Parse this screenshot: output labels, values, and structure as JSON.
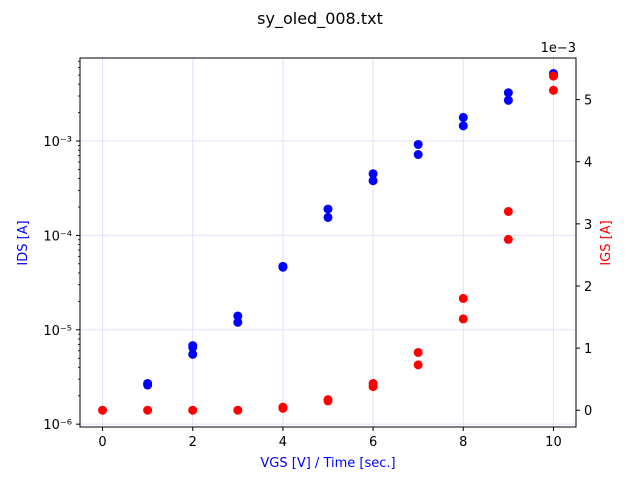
{
  "chart_data": {
    "type": "scatter",
    "title": "sy_oled_008.txt",
    "xlabel": "VGS [V] / Time [sec.]",
    "ylabel_left": "IDS [A]",
    "ylabel_right": "IGS [A]",
    "right_axis_offset_text": "1e−3",
    "x_ticks": [
      "0",
      "2",
      "4",
      "6",
      "8",
      "10"
    ],
    "left_ticks": [
      "10⁻⁶",
      "10⁻⁵",
      "10⁻⁴",
      "10⁻³"
    ],
    "right_ticks": [
      "0",
      "1",
      "2",
      "3",
      "4",
      "5"
    ],
    "xlim": [
      -0.5,
      10.5
    ],
    "ylim_left_log10": [
      -6.03,
      -2.12
    ],
    "ylim_right": [
      -0.27,
      5.67
    ],
    "left_scale": "log",
    "right_scale": "linear",
    "grid": true,
    "colors": {
      "IDS": "#0000ff",
      "IGS": "#ff0000",
      "grid": "#e0e0ff",
      "xlabel": "#0000ff"
    },
    "series": [
      {
        "axis": "left",
        "color": "#0000ff",
        "x": [
          1,
          1,
          2,
          2,
          2,
          3,
          3,
          4,
          4,
          5,
          5,
          6,
          6,
          7,
          7,
          8,
          8,
          9,
          9,
          10,
          10
        ],
        "y": [
          2.7e-06,
          2.6e-06,
          6.8e-06,
          5.5e-06,
          6.5e-06,
          1.4e-05,
          1.2e-05,
          4.7e-05,
          4.6e-05,
          0.00019,
          0.000155,
          0.00045,
          0.00038,
          0.00092,
          0.00072,
          0.00178,
          0.00145,
          0.00325,
          0.0027,
          0.0052,
          0.0049
        ]
      },
      {
        "axis": "right",
        "color": "#ff0000",
        "x": [
          0,
          1,
          2,
          3,
          4,
          4,
          5,
          5,
          6,
          6,
          7,
          7,
          8,
          8,
          9,
          9,
          10,
          10
        ],
        "y": [
          0,
          0,
          0,
          0,
          0.03,
          0.05,
          0.15,
          0.17,
          0.43,
          0.38,
          0.93,
          0.73,
          1.8,
          1.47,
          3.2,
          2.75,
          5.38,
          5.15
        ]
      }
    ]
  }
}
